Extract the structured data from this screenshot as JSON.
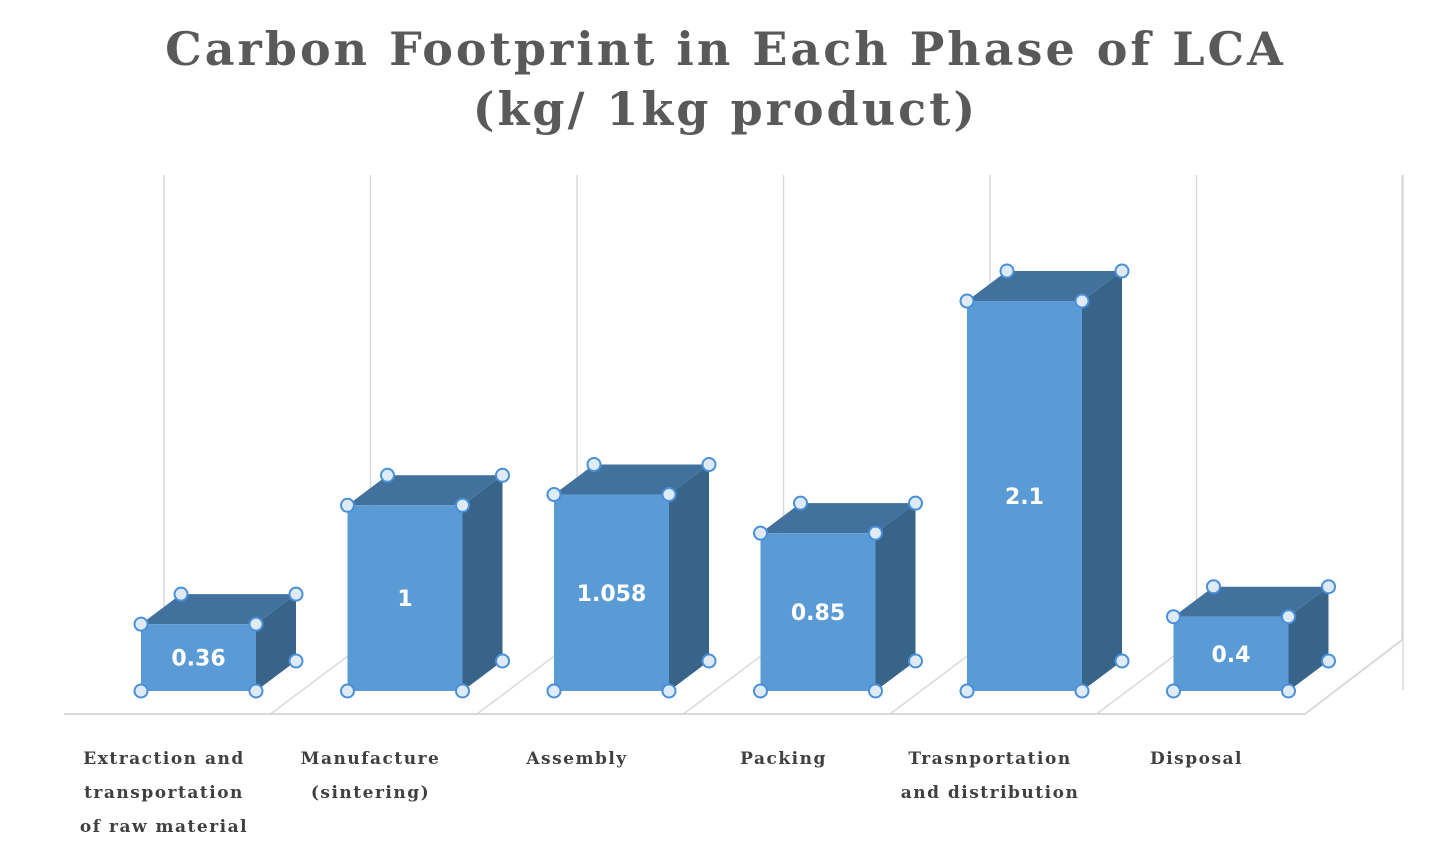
{
  "chart_data": {
    "type": "bar",
    "style": "3d-column",
    "title_lines": [
      "Carbon Footprint in Each Phase of LCA",
      "(kg/ 1kg product)"
    ],
    "categories": [
      [
        "Extraction  and",
        "transportation",
        "of raw material"
      ],
      [
        "Manufacture",
        "(sintering)"
      ],
      [
        "Assembly"
      ],
      [
        "Packing"
      ],
      [
        "Trasnportation",
        "and distribution"
      ],
      [
        "Disposal"
      ]
    ],
    "values": [
      0.36,
      1,
      1.058,
      0.85,
      2.1,
      0.4
    ],
    "value_labels": [
      "0.36",
      "1",
      "1.058",
      "0.85",
      "2.1",
      "0.4"
    ],
    "ylim": [
      0,
      2.1
    ],
    "grid": "vertical",
    "legend": "none",
    "colors": {
      "front": "#5b9bd5",
      "top": "#41719c",
      "side": "#386489",
      "handle_stroke": "#4a90d9",
      "handle_fill": "#deebf7",
      "grid": "#d9d9d9",
      "label": "#404040",
      "title": "#595959"
    }
  }
}
